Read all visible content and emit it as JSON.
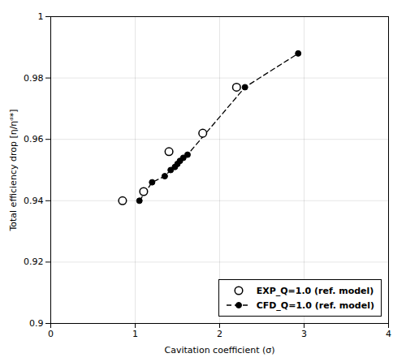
{
  "chart_data": {
    "type": "line",
    "xlabel": "Cavitation coefficient (σ)",
    "ylabel": "Total efficiency drop [η/ηᵈ*]",
    "xlim": [
      0,
      4
    ],
    "ylim": [
      0.9,
      1.0
    ],
    "xticks": [
      0,
      1,
      2,
      3,
      4
    ],
    "yticks": [
      0.9,
      0.92,
      0.94,
      0.96,
      0.98,
      1
    ],
    "grid": true,
    "legend": "lower right",
    "series": [
      {
        "name": "EXP_Q=1.0 (ref. model)",
        "type": "scatter",
        "color": "#000000",
        "marker": "open_circle",
        "line_style": "none",
        "x": [
          0.85,
          1.1,
          1.4,
          1.8,
          2.2
        ],
        "values": [
          0.94,
          0.943,
          0.956,
          0.962,
          0.977
        ]
      },
      {
        "name": "CFD_Q=1.0 (ref. model)",
        "type": "line",
        "color": "#000000",
        "marker": "circle",
        "line_style": "dashed",
        "x": [
          1.05,
          1.2,
          1.35,
          1.42,
          1.47,
          1.5,
          1.53,
          1.57,
          1.62,
          2.3,
          2.93
        ],
        "values": [
          0.94,
          0.946,
          0.948,
          0.95,
          0.951,
          0.952,
          0.953,
          0.954,
          0.955,
          0.977,
          0.988
        ]
      }
    ]
  }
}
